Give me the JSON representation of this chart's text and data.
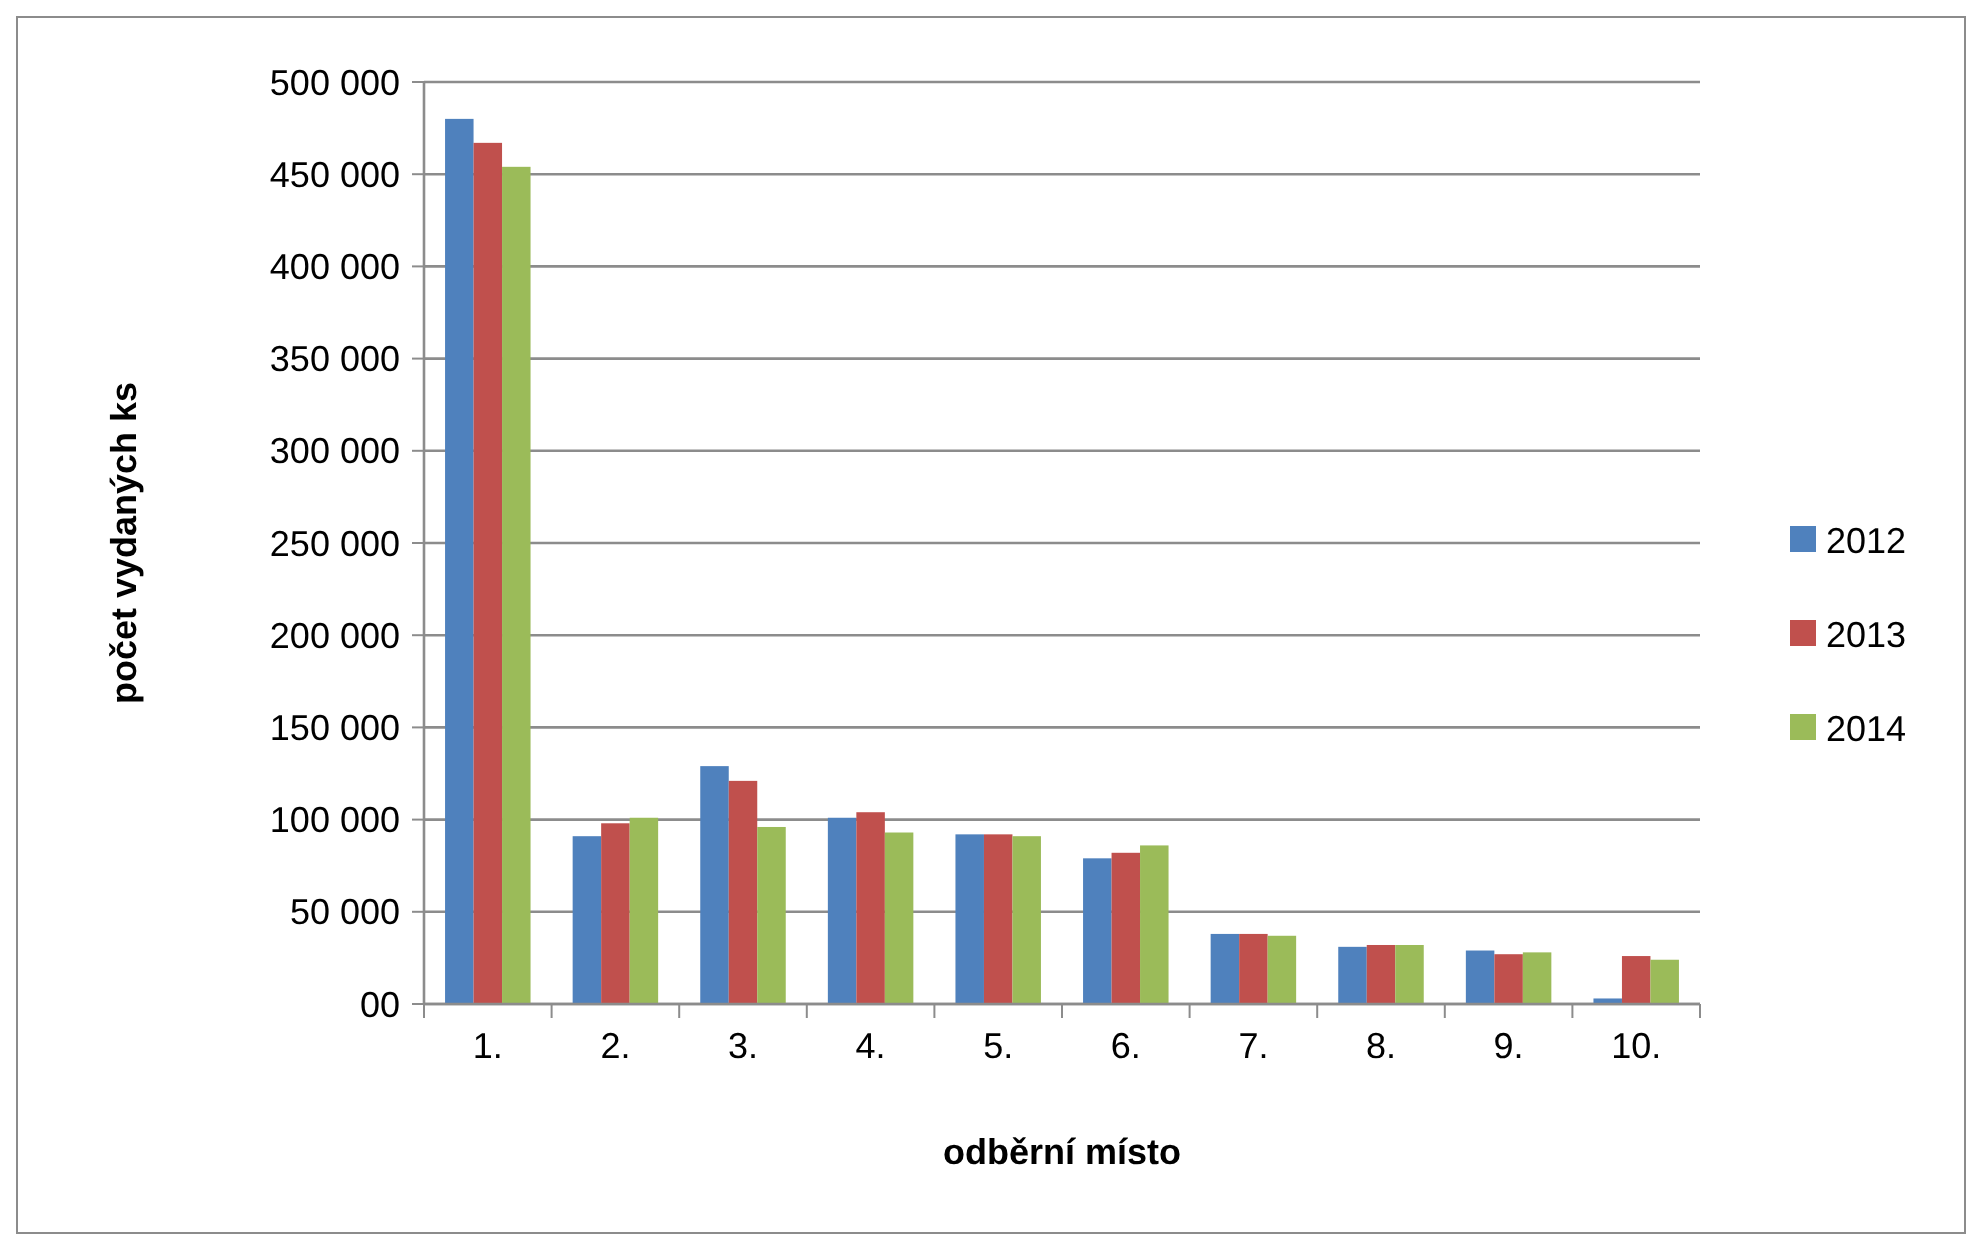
{
  "chart_data": {
    "type": "bar",
    "xlabel": "odběrní místo",
    "ylabel": "počet vydaných ks",
    "categories": [
      "1.",
      "2.",
      "3.",
      "4.",
      "5.",
      "6.",
      "7.",
      "8.",
      "9.",
      "10."
    ],
    "series": [
      {
        "name": "2012",
        "color": "#4f81bd",
        "values": [
          480000,
          91000,
          129000,
          101000,
          92000,
          79000,
          38000,
          31000,
          29000,
          3000
        ]
      },
      {
        "name": "2013",
        "color": "#c0504d",
        "values": [
          467000,
          98000,
          121000,
          104000,
          92000,
          82000,
          38000,
          32000,
          27000,
          26000
        ]
      },
      {
        "name": "2014",
        "color": "#9bbb59",
        "values": [
          454000,
          101000,
          96000,
          93000,
          91000,
          86000,
          37000,
          32000,
          28000,
          24000
        ]
      }
    ],
    "ylim": [
      0,
      500000
    ],
    "yticks": [
      {
        "value": 0,
        "label": "00"
      },
      {
        "value": 50000,
        "label": "50 000"
      },
      {
        "value": 100000,
        "label": "100 000"
      },
      {
        "value": 150000,
        "label": "150 000"
      },
      {
        "value": 200000,
        "label": "200 000"
      },
      {
        "value": 250000,
        "label": "250 000"
      },
      {
        "value": 300000,
        "label": "300 000"
      },
      {
        "value": 350000,
        "label": "350 000"
      },
      {
        "value": 400000,
        "label": "400 000"
      },
      {
        "value": 450000,
        "label": "450 000"
      },
      {
        "value": 500000,
        "label": "500 000"
      }
    ],
    "grid": "y",
    "legend": "right"
  }
}
